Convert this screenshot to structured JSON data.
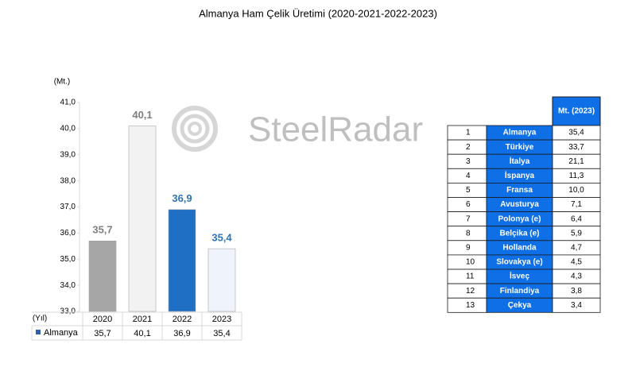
{
  "chart_data": {
    "type": "bar",
    "title": "Almanya Ham Çelik Üretimi (2020-2021-2022-2023)",
    "y_axis_label": "(Mt.)",
    "x_axis_label": "(Yıl)",
    "categories": [
      "2020",
      "2021",
      "2022",
      "2023"
    ],
    "series": [
      {
        "name": "Almanya",
        "color": "#2e5fa8",
        "values": [
          35.7,
          40.1,
          36.9,
          35.4
        ],
        "value_labels": [
          "35,7",
          "40,1",
          "36,9",
          "35,4"
        ],
        "colors": [
          "#a6a6a6",
          "#f2f2f2",
          "#1f6fc5",
          "#eef3fc"
        ],
        "label_colors": [
          "#7f7f7f",
          "#7f7f7f",
          "#2e75b6",
          "#2e75b6"
        ]
      }
    ],
    "ylim": [
      33,
      41
    ],
    "yticks": [
      {
        "value": 33,
        "label": "33,0"
      },
      {
        "value": 34,
        "label": "34,0"
      },
      {
        "value": 35,
        "label": "35,0"
      },
      {
        "value": 36,
        "label": "36,0"
      },
      {
        "value": 37,
        "label": "37,0"
      },
      {
        "value": 38,
        "label": "38,0"
      },
      {
        "value": 39,
        "label": "39,0"
      },
      {
        "value": 40,
        "label": "40,0"
      },
      {
        "value": 41,
        "label": "41,0"
      }
    ],
    "grid": false
  },
  "watermark": "SteelRadar",
  "table": {
    "header": "Mt. (2023)",
    "rows": [
      [
        1,
        "Almanya",
        "35,4"
      ],
      [
        2,
        "Türkiye",
        "33,7"
      ],
      [
        3,
        "İtalya",
        "21,1"
      ],
      [
        4,
        "İspanya",
        "11,3"
      ],
      [
        5,
        "Fransa",
        "10,0"
      ],
      [
        6,
        "Avusturya",
        "7,1"
      ],
      [
        7,
        "Polonya (e)",
        "6,4"
      ],
      [
        8,
        "Belçika (e)",
        "5,9"
      ],
      [
        9,
        "Hollanda",
        "4,7"
      ],
      [
        10,
        "Slovakya (e)",
        "4,5"
      ],
      [
        11,
        "İsveç",
        "4,3"
      ],
      [
        12,
        "Finlandiya",
        "3,8"
      ],
      [
        13,
        "Çekya",
        "3,4"
      ]
    ]
  }
}
